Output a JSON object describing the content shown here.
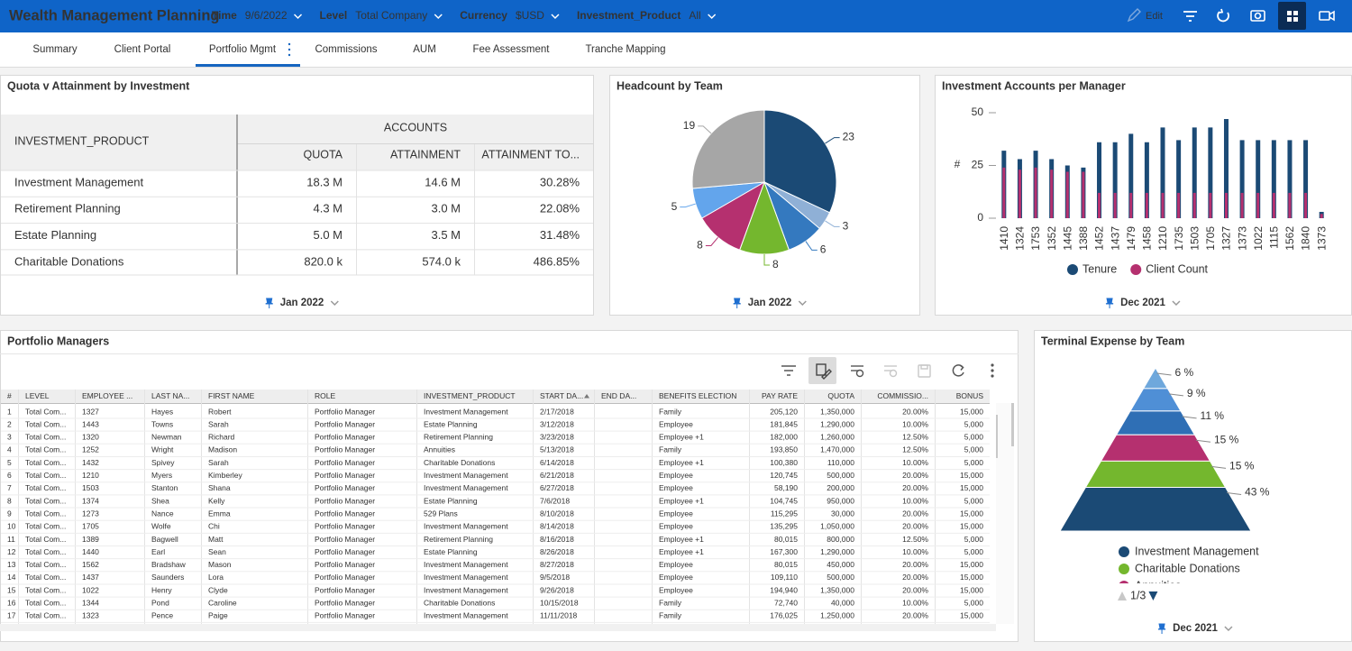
{
  "header": {
    "title": "Wealth Management Planning",
    "filters": [
      {
        "label": "Time",
        "value": "9/6/2022"
      },
      {
        "label": "Level",
        "value": "Total Company"
      },
      {
        "label": "Currency",
        "value": "$USD"
      },
      {
        "label": "Investment_Product",
        "value": "All"
      }
    ],
    "edit": "Edit"
  },
  "tabs": {
    "items": [
      "Summary",
      "Client Portal",
      "Portfolio Mgmt",
      "Commissions",
      "AUM",
      "Fee Assessment",
      "Tranche Mapping"
    ],
    "active": 2
  },
  "quota_table": {
    "title": "Quota v Attainment by Investment",
    "group": "ACCOUNTS",
    "row_header": "INVESTMENT_PRODUCT",
    "columns": [
      "QUOTA",
      "ATTAINMENT",
      "ATTAINMENT TO..."
    ],
    "rows": [
      [
        "Investment Management",
        "18.3 M",
        "14.6 M",
        "30.28%"
      ],
      [
        "Retirement Planning",
        "4.3 M",
        "3.0 M",
        "22.08%"
      ],
      [
        "Estate Planning",
        "5.0 M",
        "3.5 M",
        "31.48%"
      ],
      [
        "Charitable Donations",
        "820.0 k",
        "574.0 k",
        "486.85%"
      ]
    ],
    "footer": "Jan 2022"
  },
  "chart_data": [
    {
      "type": "pie",
      "title": "Headcount by Team",
      "values": [
        23,
        3,
        6,
        8,
        8,
        5,
        19
      ],
      "colors": [
        "#1b4a75",
        "#8fb0d6",
        "#3479bf",
        "#74b72e",
        "#b5306f",
        "#63a5ec",
        "#a6a6a6"
      ],
      "footer": "Jan 2022"
    },
    {
      "type": "bar",
      "title": "Investment Accounts per Manager",
      "ylabel": "#",
      "categories": [
        "1410",
        "1324",
        "1753",
        "1352",
        "1445",
        "1388",
        "1452",
        "1437",
        "1479",
        "1458",
        "1210",
        "1735",
        "1503",
        "1705",
        "1327",
        "1373",
        "1022",
        "1115",
        "1562",
        "1840",
        "1373"
      ],
      "series": [
        {
          "name": "Tenure",
          "color": "#1b4a75",
          "values": [
            32,
            28,
            32,
            28,
            25,
            24,
            36,
            36,
            40,
            36,
            43,
            37,
            43,
            43,
            47,
            37,
            37,
            37,
            37,
            37,
            3
          ]
        },
        {
          "name": "Client Count",
          "color": "#b5306f",
          "values": [
            24,
            23,
            24,
            23,
            22,
            22,
            12,
            12,
            12,
            12,
            12,
            12,
            12,
            12,
            12,
            12,
            12,
            12,
            12,
            12,
            2
          ]
        }
      ],
      "ylim": [
        0,
        50
      ],
      "yticks": [
        0,
        25,
        50
      ],
      "footer": "Dec 2021"
    },
    {
      "type": "pyramid",
      "title": "Terminal Expense by Team",
      "categories": [
        null,
        null,
        null,
        "Annuities",
        "Charitable Donations",
        "Investment Management"
      ],
      "values": [
        6,
        9,
        11,
        15,
        15,
        43
      ],
      "value_labels": [
        "6 %",
        "9 %",
        "11 %",
        "15 %",
        "15 %",
        "43 %"
      ],
      "colors": [
        "#6fa8dc",
        "#4f8fd6",
        "#2f6fb5",
        "#b5306f",
        "#74b72e",
        "#1b4a75"
      ],
      "legend_page": "1/3",
      "footer": "Dec 2021"
    }
  ],
  "managers_table": {
    "title": "Portfolio Managers",
    "columns": [
      "#",
      "LEVEL",
      "EMPLOYEE ...",
      "LAST NA...",
      "FIRST NAME",
      "ROLE",
      "INVESTMENT_PRODUCT",
      "START DA...",
      "END DA...",
      "BENEFITS ELECTION",
      "PAY RATE",
      "QUOTA",
      "COMMISSIO...",
      "BONUS"
    ],
    "rows": [
      [
        "1",
        "Total Com...",
        "1327",
        "Hayes",
        "Robert",
        "Portfolio Manager",
        "Investment Management",
        "2/17/2018",
        null,
        "Family",
        "205,120",
        "1,350,000",
        "20.00%",
        "15,000"
      ],
      [
        "2",
        "Total Com...",
        "1443",
        "Towns",
        "Sarah",
        "Portfolio Manager",
        "Estate Planning",
        "3/12/2018",
        null,
        "Employee",
        "181,845",
        "1,290,000",
        "10.00%",
        "5,000"
      ],
      [
        "3",
        "Total Com...",
        "1320",
        "Newman",
        "Richard",
        "Portfolio Manager",
        "Retirement Planning",
        "3/23/2018",
        null,
        "Employee +1",
        "182,000",
        "1,260,000",
        "12.50%",
        "5,000"
      ],
      [
        "4",
        "Total Com...",
        "1252",
        "Wright",
        "Madison",
        "Portfolio Manager",
        "Annuities",
        "5/13/2018",
        null,
        "Family",
        "193,850",
        "1,470,000",
        "12.50%",
        "5,000"
      ],
      [
        "5",
        "Total Com...",
        "1432",
        "Spivey",
        "Sarah",
        "Portfolio Manager",
        "Charitable Donations",
        "6/14/2018",
        null,
        "Employee +1",
        "100,380",
        "110,000",
        "10.00%",
        "5,000"
      ],
      [
        "6",
        "Total Com...",
        "1210",
        "Myers",
        "Kimberley",
        "Portfolio Manager",
        "Investment Management",
        "6/21/2018",
        null,
        "Employee",
        "120,745",
        "500,000",
        "20.00%",
        "15,000"
      ],
      [
        "7",
        "Total Com...",
        "1503",
        "Stanton",
        "Shana",
        "Portfolio Manager",
        "Investment Management",
        "6/27/2018",
        null,
        "Employee",
        "58,190",
        "200,000",
        "20.00%",
        "15,000"
      ],
      [
        "8",
        "Total Com...",
        "1374",
        "Shea",
        "Kelly",
        "Portfolio Manager",
        "Estate Planning",
        "7/6/2018",
        null,
        "Employee +1",
        "104,745",
        "950,000",
        "10.00%",
        "5,000"
      ],
      [
        "9",
        "Total Com...",
        "1273",
        "Nance",
        "Emma",
        "Portfolio Manager",
        "529 Plans",
        "8/10/2018",
        null,
        "Employee",
        "115,295",
        "30,000",
        "20.00%",
        "15,000"
      ],
      [
        "10",
        "Total Com...",
        "1705",
        "Wolfe",
        "Chi",
        "Portfolio Manager",
        "Investment Management",
        "8/14/2018",
        null,
        "Employee",
        "135,295",
        "1,050,000",
        "20.00%",
        "15,000"
      ],
      [
        "11",
        "Total Com...",
        "1389",
        "Bagwell",
        "Matt",
        "Portfolio Manager",
        "Retirement Planning",
        "8/16/2018",
        null,
        "Employee +1",
        "80,015",
        "800,000",
        "12.50%",
        "5,000"
      ],
      [
        "12",
        "Total Com...",
        "1440",
        "Earl",
        "Sean",
        "Portfolio Manager",
        "Estate Planning",
        "8/26/2018",
        null,
        "Employee +1",
        "167,300",
        "1,290,000",
        "10.00%",
        "5,000"
      ],
      [
        "13",
        "Total Com...",
        "1562",
        "Bradshaw",
        "Mason",
        "Portfolio Manager",
        "Investment Management",
        "8/27/2018",
        null,
        "Employee",
        "80,015",
        "450,000",
        "20.00%",
        "15,000"
      ],
      [
        "14",
        "Total Com...",
        "1437",
        "Saunders",
        "Lora",
        "Portfolio Manager",
        "Investment Management",
        "9/5/2018",
        null,
        "Employee",
        "109,110",
        "500,000",
        "20.00%",
        "15,000"
      ],
      [
        "15",
        "Total Com...",
        "1022",
        "Henry",
        "Clyde",
        "Portfolio Manager",
        "Investment Management",
        "9/26/2018",
        null,
        "Employee",
        "194,940",
        "1,350,000",
        "20.00%",
        "15,000"
      ],
      [
        "16",
        "Total Com...",
        "1344",
        "Pond",
        "Caroline",
        "Portfolio Manager",
        "Charitable Donations",
        "10/15/2018",
        null,
        "Family",
        "72,740",
        "40,000",
        "10.00%",
        "5,000"
      ],
      [
        "17",
        "Total Com...",
        "1323",
        "Pence",
        "Paige",
        "Portfolio Manager",
        "Investment Management",
        "11/11/2018",
        null,
        "Family",
        "176,025",
        "1,250,000",
        "20.00%",
        "15,000"
      ]
    ]
  }
}
